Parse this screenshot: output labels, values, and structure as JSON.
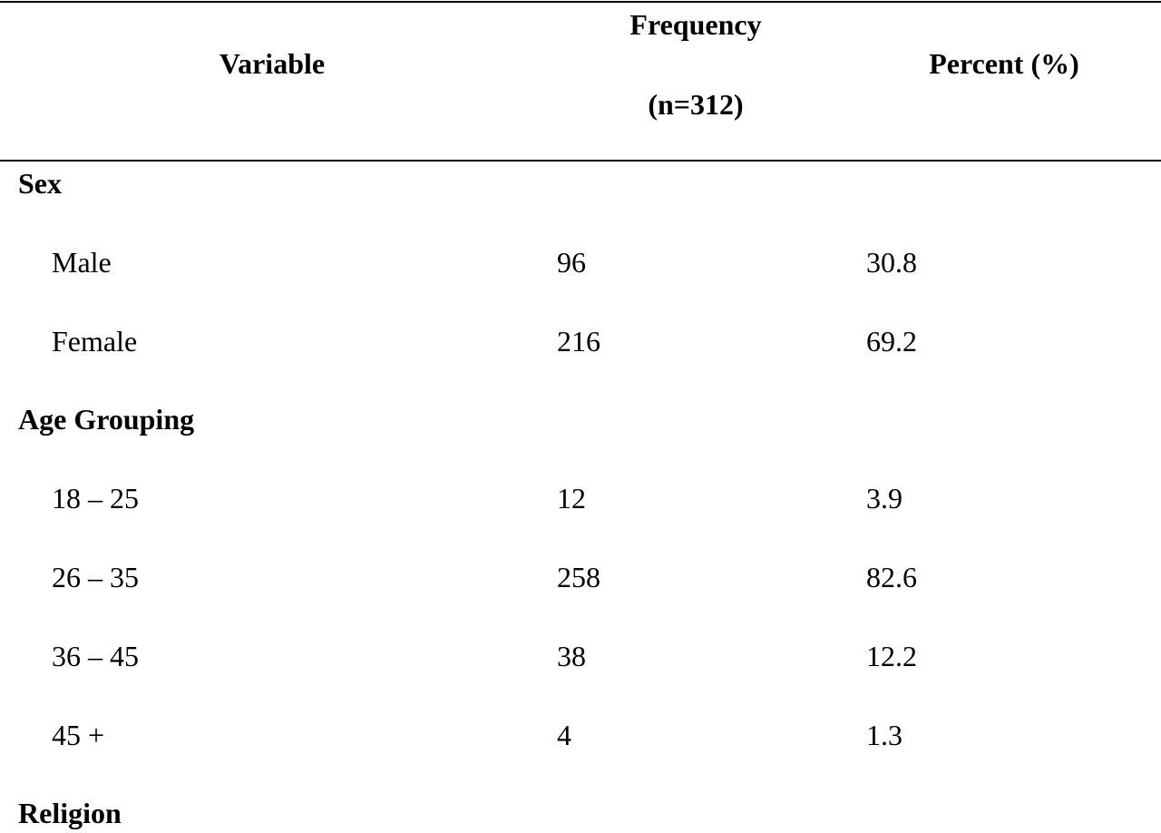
{
  "table": {
    "header": {
      "variable": "Variable",
      "frequency": "Frequency",
      "frequency_n": "(n=312)",
      "percent": "Percent (%)"
    },
    "groups": [
      {
        "title": "Sex",
        "rows": [
          [
            "Male",
            96,
            30.8
          ],
          [
            "Female",
            216,
            69.2
          ]
        ]
      },
      {
        "title": "Age Grouping",
        "rows": [
          [
            "18 – 25",
            12,
            3.9
          ],
          [
            "26 – 35",
            258,
            82.6
          ],
          [
            "36 – 45",
            38,
            12.2
          ],
          [
            "45 +",
            4,
            1.3
          ]
        ]
      },
      {
        "title": "Religion"
      }
    ]
  }
}
